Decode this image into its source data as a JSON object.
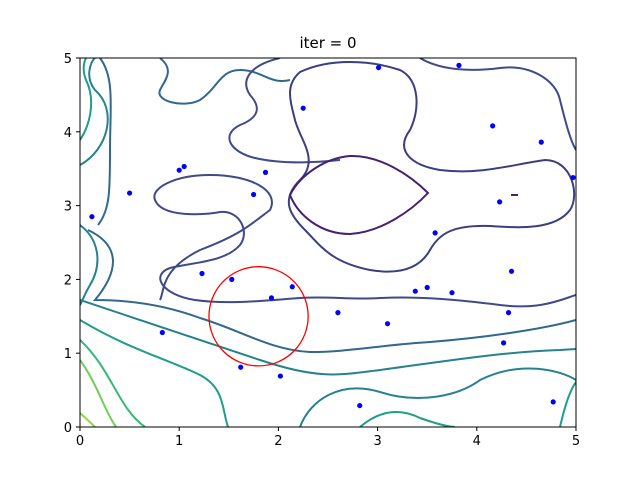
{
  "chart_data": {
    "type": "contour",
    "title": "iter = 0",
    "xlabel": "",
    "ylabel": "",
    "xlim": [
      0,
      5
    ],
    "ylim": [
      0,
      5
    ],
    "xticks": [
      "0",
      "1",
      "2",
      "3",
      "4",
      "5"
    ],
    "yticks": [
      "0",
      "1",
      "2",
      "3",
      "4",
      "5"
    ],
    "grid": false,
    "colormap": [
      "#440154",
      "#31688e",
      "#26828e",
      "#1f9e89",
      "#35b779",
      "#6ece58",
      "#b5de2b"
    ],
    "contour_levels_note_colors": {
      "innermost": "#46216f",
      "inner": "#3e4a89",
      "middle": "#31688e",
      "outer": "#26828e",
      "outer2": "#1f9e89",
      "outer3": "#35b779",
      "outermost": "#8fd744"
    },
    "points": {
      "color": "#0000ff",
      "x": [
        3.01,
        3.82,
        2.25,
        4.16,
        4.65,
        1.05,
        1.0,
        1.87,
        0.5,
        1.75,
        4.23,
        4.97,
        0.12,
        3.58,
        1.23,
        1.53,
        2.14,
        1.93,
        4.35,
        3.38,
        3.5,
        3.75,
        2.6,
        3.1,
        4.32,
        0.83,
        4.27,
        1.62,
        2.02,
        2.82,
        4.77
      ],
      "y": [
        4.87,
        4.9,
        4.32,
        4.08,
        3.86,
        3.53,
        3.48,
        3.45,
        3.17,
        3.15,
        3.05,
        3.38,
        2.85,
        2.63,
        2.08,
        2.0,
        1.9,
        1.75,
        2.11,
        1.84,
        1.89,
        1.82,
        1.55,
        1.4,
        1.55,
        1.28,
        1.14,
        0.81,
        0.69,
        0.29,
        0.34
      ]
    },
    "circle": {
      "color": "#ff0000",
      "center_x": 1.8,
      "center_y": 1.5,
      "radius": 0.5
    }
  }
}
